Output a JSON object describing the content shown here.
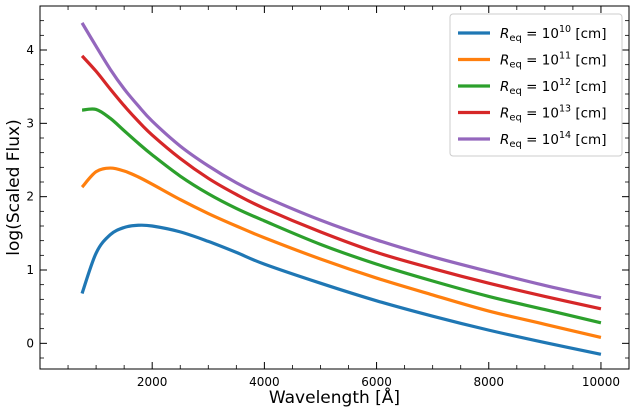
{
  "chart_data": {
    "type": "line",
    "title": "",
    "xlabel": "Wavelength [Å]",
    "ylabel": "log(Scaled Flux)",
    "xlim": [
      0,
      10500
    ],
    "ylim": [
      -0.35,
      4.6
    ],
    "xticks": [
      2000,
      4000,
      6000,
      8000,
      10000
    ],
    "yticks": [
      0,
      1,
      2,
      3,
      4
    ],
    "xtick_labels": [
      "2000",
      "4000",
      "6000",
      "8000",
      "10000"
    ],
    "ytick_labels": [
      "0",
      "1",
      "2",
      "3",
      "4"
    ],
    "grid": false,
    "legend_position": "top-right",
    "x": [
      750,
      1000,
      1250,
      1500,
      1750,
      2000,
      2500,
      3000,
      3500,
      4000,
      5000,
      6000,
      7000,
      8000,
      9000,
      10000
    ],
    "series": [
      {
        "name": "R_eq = 10^10 [cm]",
        "legend_base": "R",
        "legend_sub": "eq",
        "legend_mid": " = 10",
        "legend_exp": "10",
        "legend_unit": " [cm]",
        "color": "#1f77b4",
        "values": [
          0.68,
          1.23,
          1.48,
          1.58,
          1.61,
          1.6,
          1.52,
          1.39,
          1.24,
          1.08,
          0.82,
          0.58,
          0.37,
          0.18,
          0.01,
          -0.15
        ]
      },
      {
        "name": "R_eq = 10^11 [cm]",
        "legend_base": "R",
        "legend_sub": "eq",
        "legend_mid": " = 10",
        "legend_exp": "11",
        "legend_unit": " [cm]",
        "color": "#ff7f0e",
        "values": [
          2.13,
          2.34,
          2.39,
          2.35,
          2.27,
          2.17,
          1.96,
          1.77,
          1.6,
          1.44,
          1.15,
          0.89,
          0.66,
          0.44,
          0.26,
          0.08
        ]
      },
      {
        "name": "R_eq = 10^12 [cm]",
        "legend_base": "R",
        "legend_sub": "eq",
        "legend_mid": " = 10",
        "legend_exp": "12",
        "legend_unit": " [cm]",
        "color": "#2ca02c",
        "values": [
          3.18,
          3.19,
          3.07,
          2.9,
          2.73,
          2.57,
          2.28,
          2.04,
          1.84,
          1.67,
          1.35,
          1.08,
          0.85,
          0.64,
          0.46,
          0.28
        ]
      },
      {
        "name": "R_eq = 10^13 [cm]",
        "legend_base": "R",
        "legend_sub": "eq",
        "legend_mid": " = 10",
        "legend_exp": "13",
        "legend_unit": " [cm]",
        "color": "#d62728",
        "values": [
          3.92,
          3.71,
          3.47,
          3.24,
          3.03,
          2.84,
          2.52,
          2.25,
          2.03,
          1.84,
          1.52,
          1.24,
          1.02,
          0.82,
          0.64,
          0.47
        ]
      },
      {
        "name": "R_eq = 10^14 [cm]",
        "legend_base": "R",
        "legend_sub": "eq",
        "legend_mid": " = 10",
        "legend_exp": "14",
        "legend_unit": " [cm]",
        "color": "#9467bd",
        "values": [
          4.37,
          4.05,
          3.74,
          3.47,
          3.24,
          3.03,
          2.69,
          2.42,
          2.19,
          2.0,
          1.68,
          1.41,
          1.18,
          0.98,
          0.79,
          0.62
        ]
      }
    ]
  }
}
